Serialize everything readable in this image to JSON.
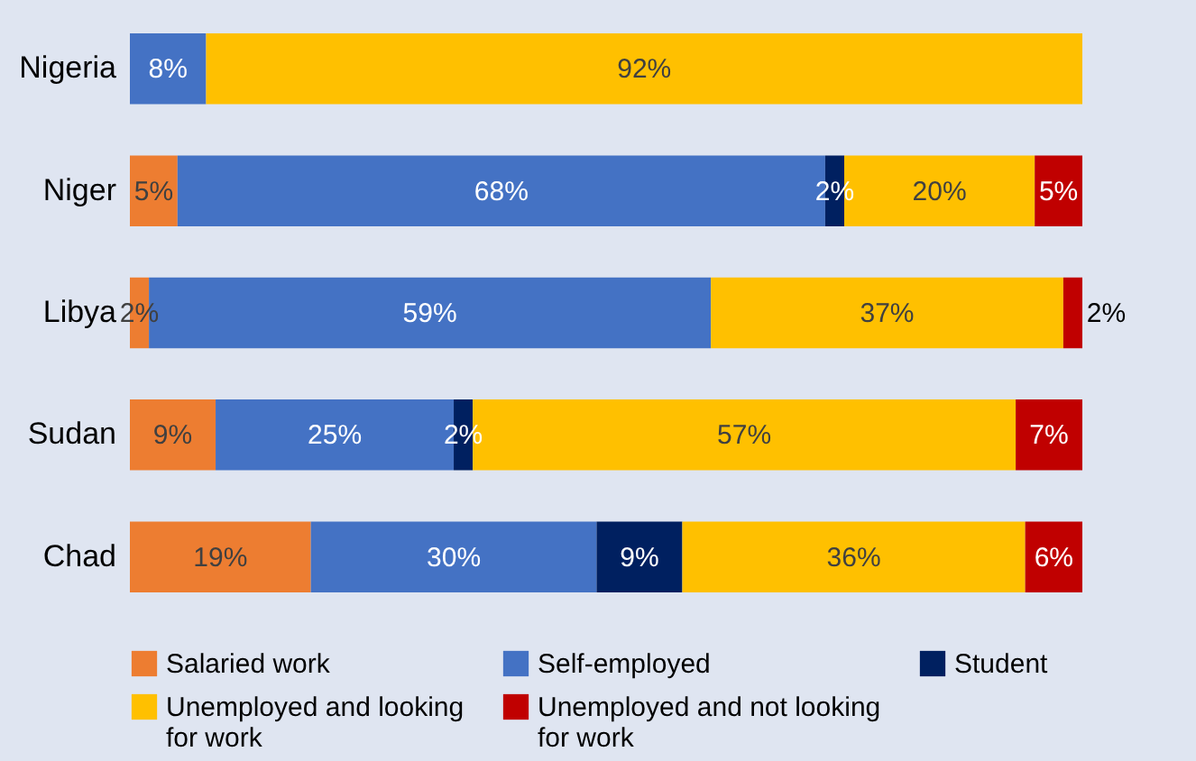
{
  "chart_data": {
    "type": "bar",
    "orientation": "horizontal",
    "stacked": true,
    "legend": "bottom",
    "categories": [
      "Nigeria",
      "Niger",
      "Libya",
      "Sudan",
      "Chad"
    ],
    "series": [
      {
        "name": "Salaried work",
        "color": "#ed7d31",
        "values": [
          null,
          5,
          2,
          9,
          19
        ],
        "value_labels": [
          null,
          "5%",
          "2%",
          "9%",
          "19%"
        ]
      },
      {
        "name": "Self-employed",
        "color": "#4472c4",
        "values": [
          8,
          68,
          59,
          25,
          30
        ],
        "value_labels": [
          "8%",
          "68%",
          "59%",
          "25%",
          "30%"
        ]
      },
      {
        "name": "Student",
        "color": "#002060",
        "values": [
          null,
          2,
          null,
          2,
          9
        ],
        "value_labels": [
          null,
          "2%",
          null,
          "2%",
          "9%"
        ]
      },
      {
        "name": "Unemployed and looking for work",
        "color": "#ffc000",
        "values": [
          92,
          20,
          37,
          57,
          36
        ],
        "value_labels": [
          "92%",
          "20%",
          "37%",
          "57%",
          "36%"
        ]
      },
      {
        "name": "Unemployed and not looking for work",
        "color": "#c00000",
        "values": [
          null,
          5,
          2,
          7,
          6
        ],
        "value_labels": [
          null,
          "5%",
          "2%",
          "7%",
          "6%"
        ]
      }
    ]
  }
}
